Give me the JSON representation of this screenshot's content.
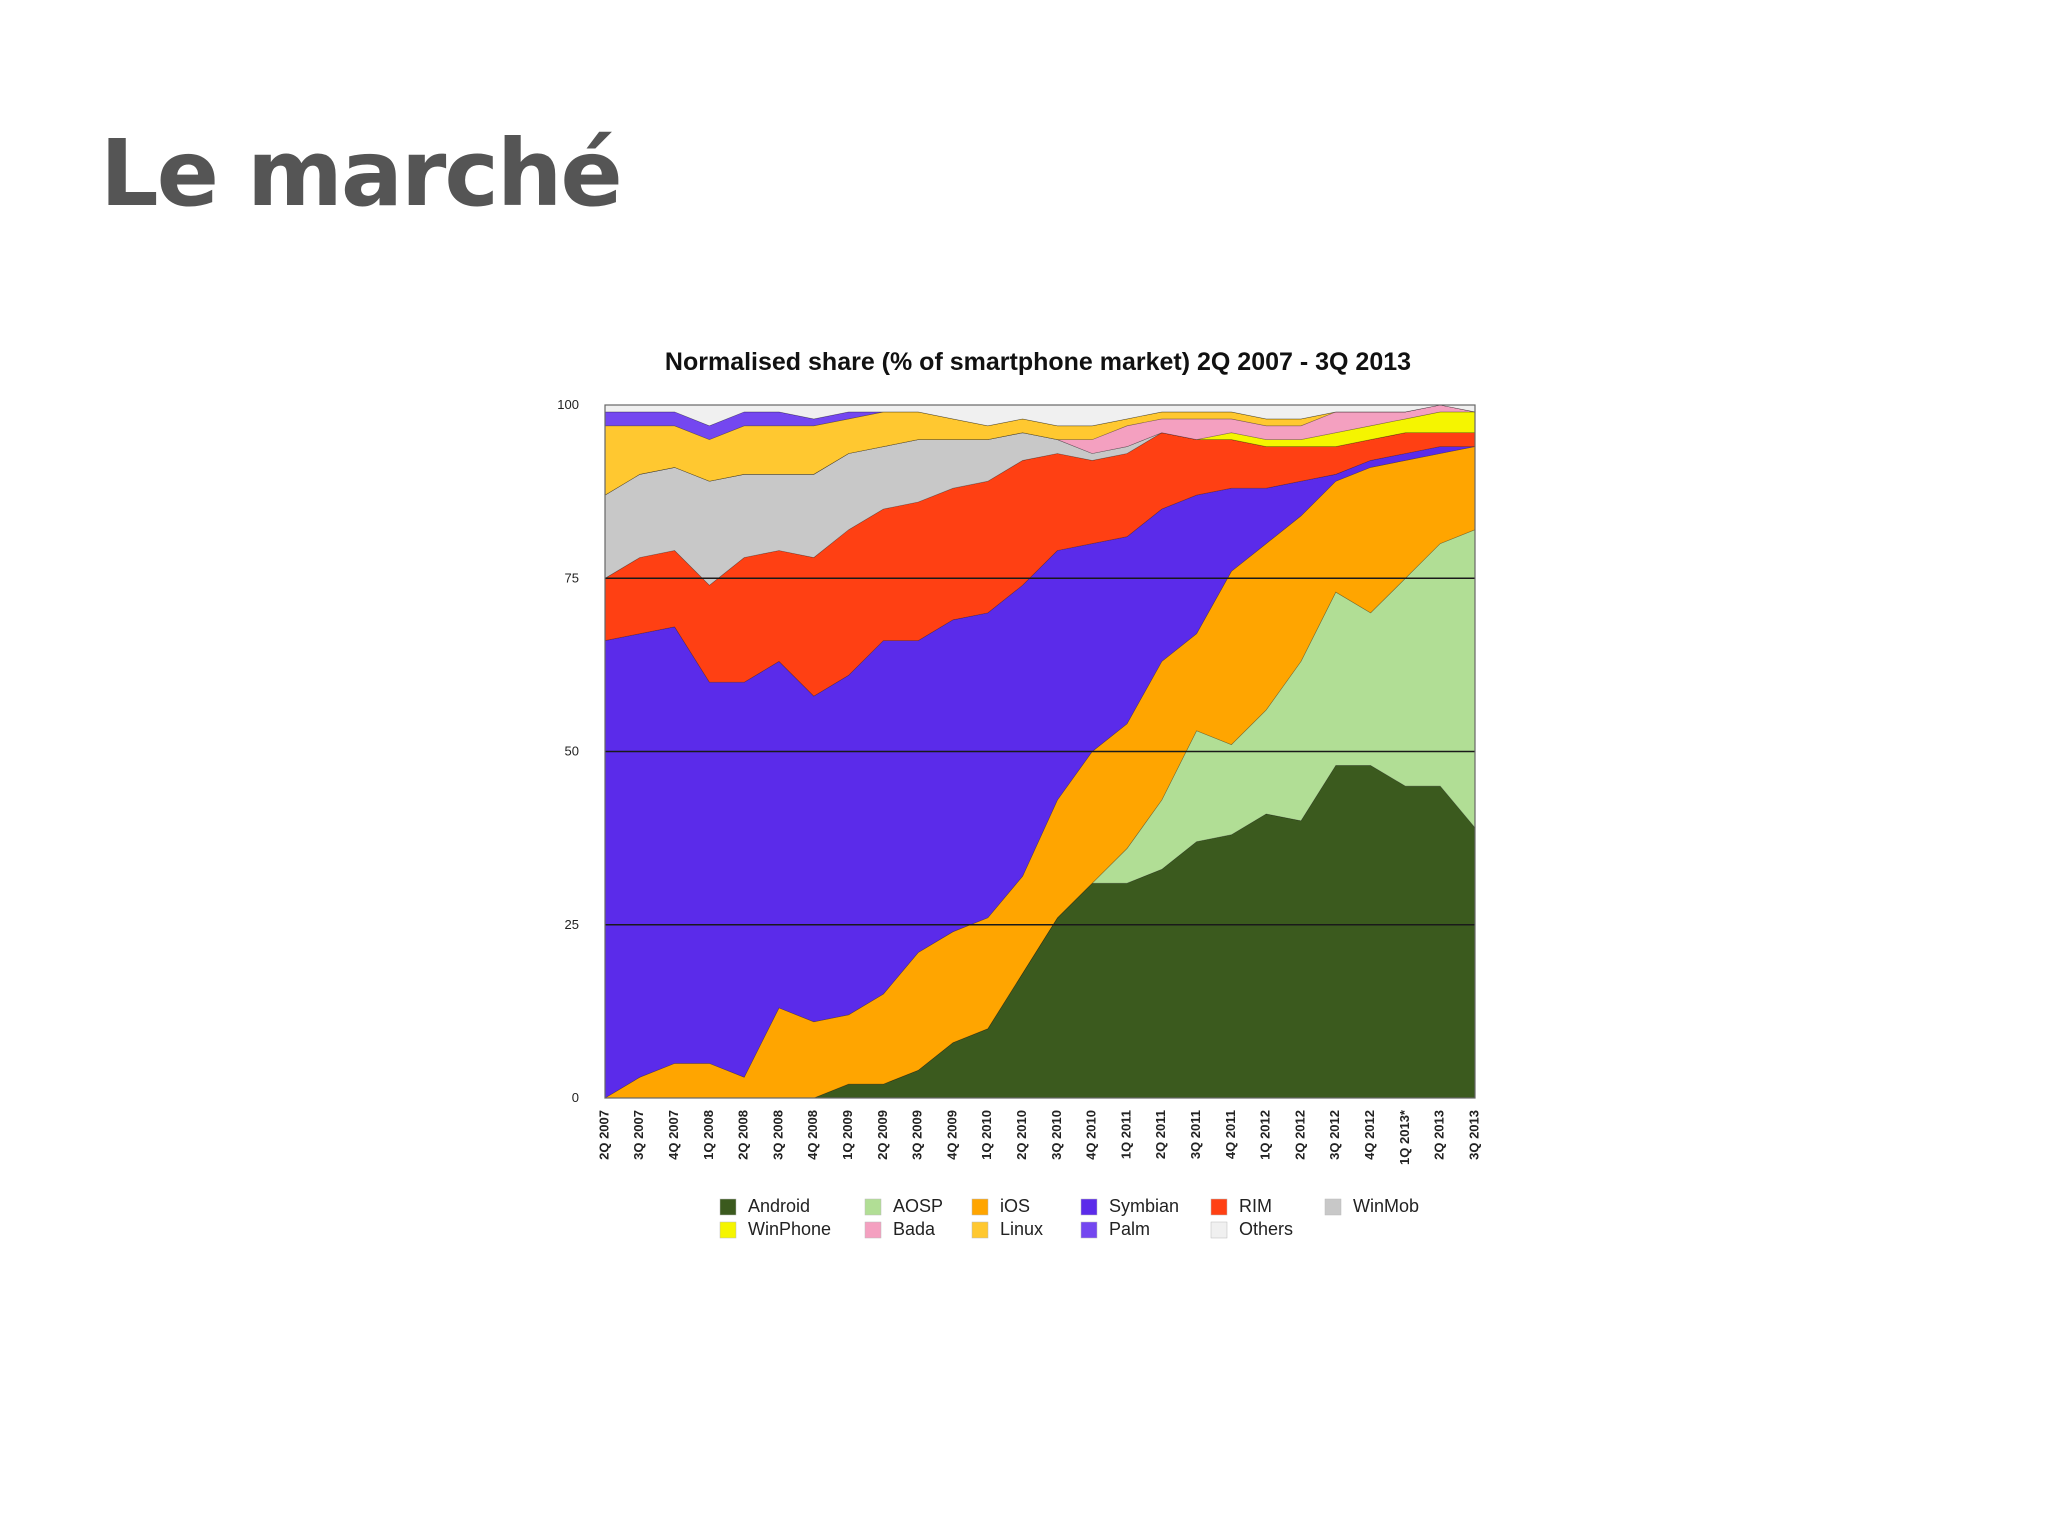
{
  "slide": {
    "title": "Le marché"
  },
  "chart_data": {
    "type": "area",
    "stacked": true,
    "title": "Normalised share (% of smartphone market) 2Q 2007 - 3Q 2013",
    "xlabel": "",
    "ylabel": "",
    "ylim": [
      0,
      100
    ],
    "y_ticks": [
      "0",
      "25",
      "50",
      "75",
      "100"
    ],
    "grid": true,
    "legend_position": "bottom",
    "categories": [
      "2Q 2007",
      "3Q 2007",
      "4Q 2007",
      "1Q 2008",
      "2Q 2008",
      "3Q 2008",
      "4Q 2008",
      "1Q 2009",
      "2Q 2009",
      "3Q 2009",
      "4Q 2009",
      "1Q 2010",
      "2Q 2010",
      "3Q 2010",
      "4Q 2010",
      "1Q 2011",
      "2Q 2011",
      "3Q 2011",
      "4Q 2011",
      "1Q 2012",
      "2Q 2012",
      "3Q 2012",
      "4Q 2012",
      "1Q 2013*",
      "2Q 2013",
      "3Q 2013"
    ],
    "series": [
      {
        "name": "Android",
        "color": "#3b5a1e",
        "values": [
          0,
          0,
          0,
          0,
          0,
          0,
          0,
          2,
          2,
          4,
          8,
          10,
          18,
          26,
          31,
          31,
          33,
          37,
          38,
          41,
          40,
          48,
          48,
          45,
          45,
          39
        ]
      },
      {
        "name": "AOSP",
        "color": "#b1de95",
        "values": [
          0,
          0,
          0,
          0,
          0,
          0,
          0,
          0,
          0,
          0,
          0,
          0,
          0,
          0,
          0,
          5,
          10,
          16,
          13,
          15,
          23,
          25,
          22,
          30,
          35,
          43
        ]
      },
      {
        "name": "iOS",
        "color": "#ffa500",
        "values": [
          0,
          3,
          5,
          5,
          3,
          13,
          11,
          10,
          13,
          17,
          16,
          16,
          14,
          17,
          19,
          18,
          20,
          14,
          25,
          24,
          21,
          16,
          21,
          17,
          13,
          12
        ]
      },
      {
        "name": "Symbian",
        "color": "#5b2bea",
        "values": [
          66,
          64,
          63,
          55,
          57,
          50,
          47,
          49,
          51,
          45,
          45,
          44,
          42,
          36,
          30,
          27,
          22,
          20,
          12,
          8,
          5,
          1,
          1,
          1,
          1,
          0
        ]
      },
      {
        "name": "RIM",
        "color": "#ff4013",
        "values": [
          9,
          11,
          11,
          14,
          18,
          16,
          20,
          21,
          19,
          20,
          19,
          19,
          18,
          14,
          12,
          12,
          11,
          8,
          7,
          6,
          5,
          4,
          3,
          3,
          2,
          2
        ]
      },
      {
        "name": "WinMob",
        "color": "#c8c8c8",
        "values": [
          12,
          12,
          12,
          15,
          12,
          11,
          12,
          11,
          9,
          9,
          7,
          6,
          4,
          2,
          1,
          1,
          0,
          0,
          0,
          0,
          0,
          0,
          0,
          0,
          0,
          0
        ]
      },
      {
        "name": "WinPhone",
        "color": "#f5f500",
        "values": [
          0,
          0,
          0,
          0,
          0,
          0,
          0,
          0,
          0,
          0,
          0,
          0,
          0,
          0,
          0,
          0,
          0,
          0,
          1,
          1,
          1,
          2,
          2,
          2,
          3,
          3
        ]
      },
      {
        "name": "Bada",
        "color": "#f4a0c0",
        "values": [
          0,
          0,
          0,
          0,
          0,
          0,
          0,
          0,
          0,
          0,
          0,
          0,
          0,
          0,
          2,
          3,
          2,
          3,
          2,
          2,
          2,
          3,
          2,
          1,
          1,
          0
        ]
      },
      {
        "name": "Linux",
        "color": "#ffc830",
        "values": [
          10,
          7,
          6,
          6,
          7,
          7,
          7,
          5,
          5,
          4,
          3,
          2,
          2,
          2,
          2,
          1,
          1,
          1,
          1,
          1,
          1,
          0,
          0,
          0,
          0,
          0
        ]
      },
      {
        "name": "Palm",
        "color": "#7447f0",
        "values": [
          2,
          2,
          2,
          2,
          2,
          2,
          1,
          1,
          0,
          0,
          0,
          0,
          0,
          0,
          0,
          0,
          0,
          0,
          0,
          0,
          0,
          0,
          0,
          0,
          0,
          0
        ]
      },
      {
        "name": "Others",
        "color": "#f0f0f0",
        "values": [
          1,
          1,
          1,
          3,
          1,
          1,
          2,
          1,
          1,
          1,
          2,
          3,
          2,
          3,
          3,
          2,
          1,
          1,
          1,
          2,
          2,
          1,
          1,
          1,
          0,
          1
        ]
      }
    ],
    "legend": [
      {
        "name": "Android",
        "color": "#3b5a1e"
      },
      {
        "name": "AOSP",
        "color": "#b1de95"
      },
      {
        "name": "iOS",
        "color": "#ffa500"
      },
      {
        "name": "Symbian",
        "color": "#5b2bea"
      },
      {
        "name": "RIM",
        "color": "#ff4013"
      },
      {
        "name": "WinMob",
        "color": "#c8c8c8"
      },
      {
        "name": "WinPhone",
        "color": "#f5f500"
      },
      {
        "name": "Bada",
        "color": "#f4a0c0"
      },
      {
        "name": "Linux",
        "color": "#ffc830"
      },
      {
        "name": "Palm",
        "color": "#7447f0"
      },
      {
        "name": "Others",
        "color": "#f0f0f0"
      }
    ]
  }
}
